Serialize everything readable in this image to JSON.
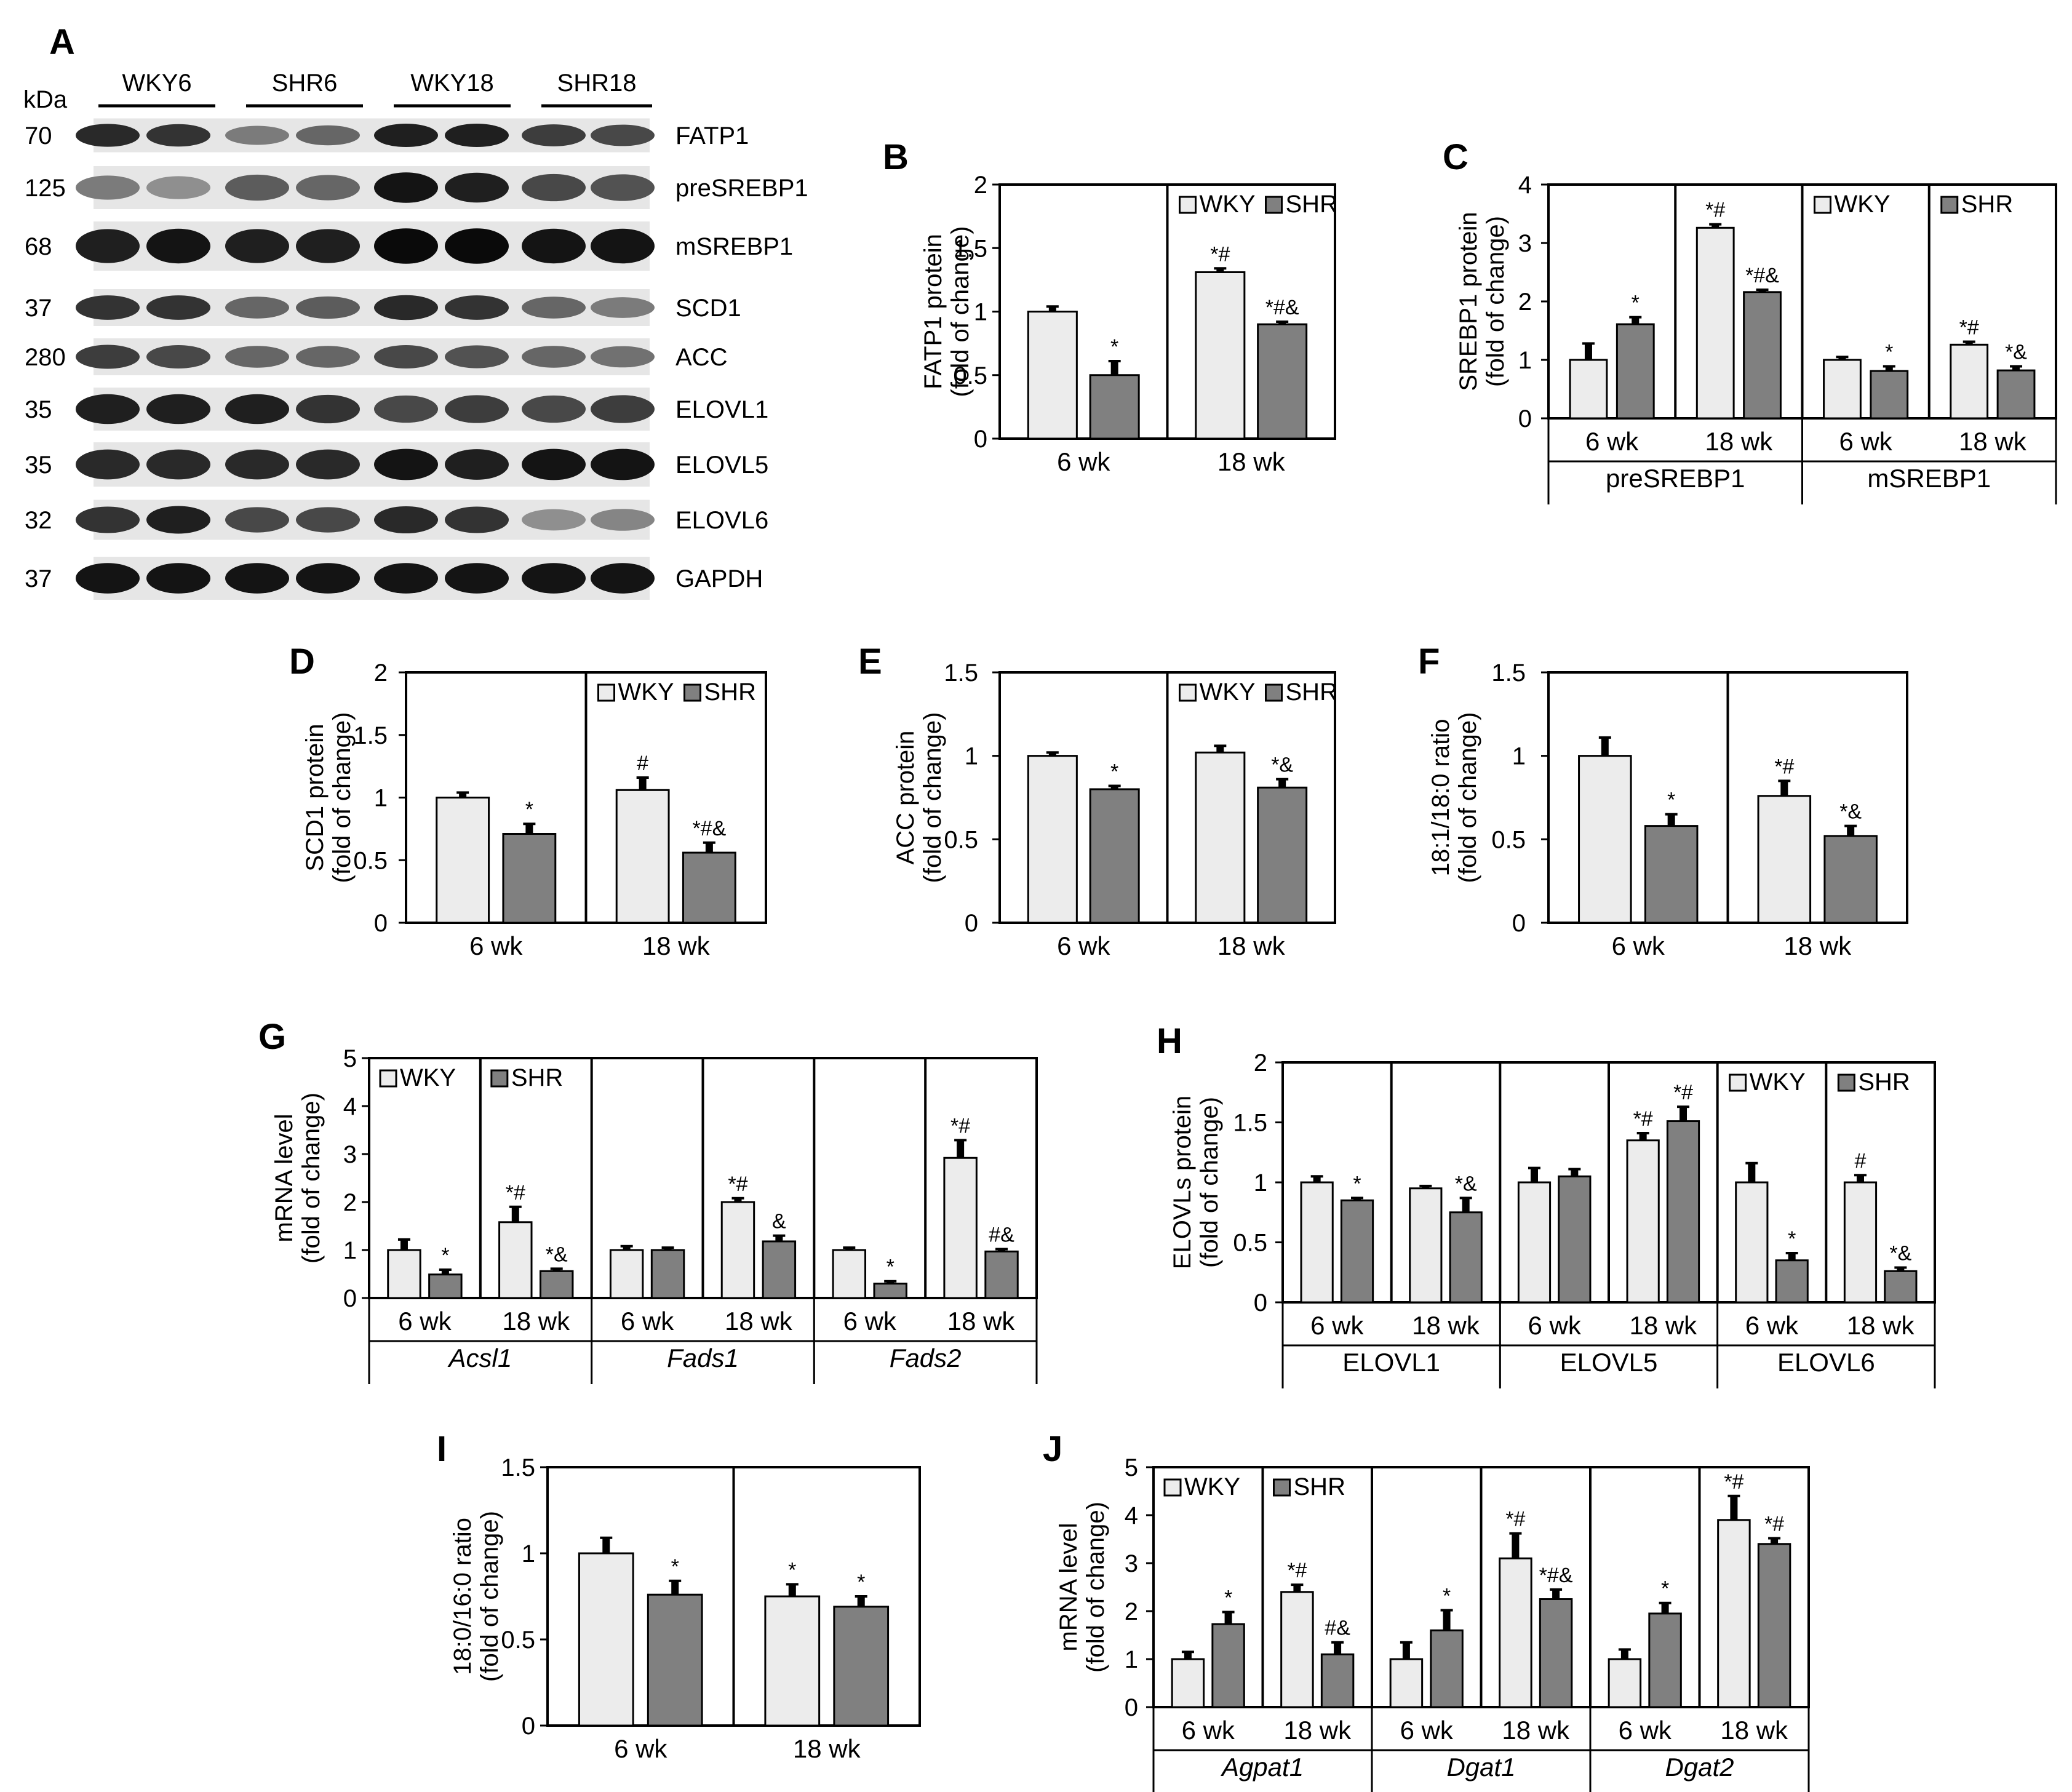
{
  "figure": {
    "blot": {
      "letter": "A",
      "kda_header": "kDa",
      "lane_groups": [
        "WKY6",
        "SHR6",
        "WKY18",
        "SHR18"
      ],
      "rows": [
        {
          "kda": "70",
          "label": "FATP1",
          "intensity": [
            0.85,
            0.8,
            0.45,
            0.55,
            0.9,
            0.9,
            0.75,
            0.7
          ]
        },
        {
          "kda": "125",
          "label": "preSREBP1",
          "intensity": [
            0.45,
            0.35,
            0.6,
            0.55,
            0.95,
            0.9,
            0.7,
            0.65
          ]
        },
        {
          "kda": "68",
          "label": "mSREBP1",
          "intensity": [
            0.9,
            0.95,
            0.9,
            0.9,
            1.0,
            1.0,
            0.95,
            0.95
          ]
        },
        {
          "kda": "37",
          "label": "SCD1",
          "intensity": [
            0.8,
            0.8,
            0.55,
            0.6,
            0.85,
            0.8,
            0.55,
            0.45
          ]
        },
        {
          "kda": "280",
          "label": "ACC",
          "intensity": [
            0.75,
            0.7,
            0.55,
            0.55,
            0.7,
            0.65,
            0.55,
            0.5
          ]
        },
        {
          "kda": "35",
          "label": "ELOVL1",
          "intensity": [
            0.9,
            0.9,
            0.9,
            0.8,
            0.7,
            0.75,
            0.7,
            0.75
          ]
        },
        {
          "kda": "35",
          "label": "ELOVL5",
          "intensity": [
            0.85,
            0.85,
            0.85,
            0.85,
            0.95,
            0.9,
            0.95,
            0.95
          ]
        },
        {
          "kda": "32",
          "label": "ELOVL6",
          "intensity": [
            0.8,
            0.9,
            0.7,
            0.7,
            0.85,
            0.8,
            0.35,
            0.4
          ]
        },
        {
          "kda": "37",
          "label": "GAPDH",
          "intensity": [
            0.95,
            0.95,
            0.95,
            0.95,
            0.95,
            0.95,
            0.95,
            0.95
          ]
        }
      ]
    }
  },
  "chart_data": [
    {
      "id": "B",
      "letter": "B",
      "type": "bar",
      "ylabel": [
        "FATP1 protein",
        "(fold of change)"
      ],
      "ylim": [
        0,
        2
      ],
      "yticks": [
        "0",
        "0.5",
        "1",
        "1.5",
        "2"
      ],
      "groups": [
        {
          "categories": [
            "6 wk",
            "18 wk"
          ],
          "label": ""
        }
      ],
      "series": [
        {
          "name": "WKY",
          "color": "#ececec"
        },
        {
          "name": "SHR",
          "color": "#808080"
        }
      ],
      "values": [
        [
          1.0,
          0.5
        ],
        [
          1.31,
          0.9
        ]
      ],
      "errors": [
        [
          0.04,
          0.11
        ],
        [
          0.03,
          0.02
        ]
      ],
      "annotations": [
        [
          "",
          "*"
        ],
        [
          "*#",
          "*#&"
        ]
      ],
      "legend": [
        "WKY",
        "SHR"
      ]
    },
    {
      "id": "C",
      "letter": "C",
      "type": "bar",
      "ylabel": [
        "SREBP1 protein",
        "(fold of change)"
      ],
      "ylim": [
        0,
        4
      ],
      "yticks": [
        "0",
        "1",
        "2",
        "3",
        "4"
      ],
      "groups": [
        {
          "categories": [
            "6 wk",
            "18 wk"
          ],
          "label": "preSREBP1"
        },
        {
          "categories": [
            "6 wk",
            "18 wk"
          ],
          "label": "mSREBP1"
        }
      ],
      "series": [
        {
          "name": "WKY",
          "color": "#ececec"
        },
        {
          "name": "SHR",
          "color": "#808080"
        }
      ],
      "values": [
        [
          1.0,
          1.61
        ],
        [
          3.26,
          2.16
        ],
        [
          1.0,
          0.81
        ],
        [
          1.26,
          0.82
        ]
      ],
      "errors": [
        [
          0.28,
          0.12
        ],
        [
          0.06,
          0.04
        ],
        [
          0.05,
          0.08
        ],
        [
          0.05,
          0.07
        ]
      ],
      "annotations": [
        [
          "",
          "*"
        ],
        [
          "*#",
          "*#&"
        ],
        [
          "",
          "*"
        ],
        [
          "*#",
          "*&"
        ]
      ],
      "legend": [
        "WKY",
        "SHR"
      ]
    },
    {
      "id": "D",
      "letter": "D",
      "type": "bar",
      "ylabel": [
        "SCD1 protein",
        "(fold of change)"
      ],
      "ylim": [
        0,
        2
      ],
      "yticks": [
        "0",
        "0.5",
        "1",
        "1.5",
        "2"
      ],
      "groups": [
        {
          "categories": [
            "6 wk",
            "18 wk"
          ],
          "label": ""
        }
      ],
      "series": [
        {
          "name": "WKY",
          "color": "#ececec"
        },
        {
          "name": "SHR",
          "color": "#808080"
        }
      ],
      "values": [
        [
          1.0,
          0.71
        ],
        [
          1.06,
          0.56
        ]
      ],
      "errors": [
        [
          0.04,
          0.08
        ],
        [
          0.1,
          0.08
        ]
      ],
      "annotations": [
        [
          "",
          "*"
        ],
        [
          "#",
          "*#&"
        ]
      ],
      "legend": [
        "WKY",
        "SHR"
      ]
    },
    {
      "id": "E",
      "letter": "E",
      "type": "bar",
      "ylabel": [
        "ACC protein",
        "(fold of change)"
      ],
      "ylim": [
        0,
        1.5
      ],
      "yticks": [
        "0",
        "0.5",
        "1",
        "1.5"
      ],
      "groups": [
        {
          "categories": [
            "6 wk",
            "18 wk"
          ],
          "label": ""
        }
      ],
      "series": [
        {
          "name": "WKY",
          "color": "#ececec"
        },
        {
          "name": "SHR",
          "color": "#808080"
        }
      ],
      "values": [
        [
          1.0,
          0.8
        ],
        [
          1.02,
          0.81
        ]
      ],
      "errors": [
        [
          0.02,
          0.02
        ],
        [
          0.04,
          0.05
        ]
      ],
      "annotations": [
        [
          "",
          "*"
        ],
        [
          "",
          "*&"
        ]
      ],
      "legend": [
        "WKY",
        "SHR"
      ]
    },
    {
      "id": "F",
      "letter": "F",
      "type": "bar",
      "ylabel": [
        "18:1/18:0 ratio",
        "(fold of change)"
      ],
      "ylim": [
        0,
        1.5
      ],
      "yticks": [
        "0",
        "0.5",
        "1",
        "1.5"
      ],
      "groups": [
        {
          "categories": [
            "6 wk",
            "18 wk"
          ],
          "label": ""
        }
      ],
      "series": [
        {
          "name": "WKY",
          "color": "#ececec"
        },
        {
          "name": "SHR",
          "color": "#808080"
        }
      ],
      "values": [
        [
          1.0,
          0.58
        ],
        [
          0.76,
          0.52
        ]
      ],
      "errors": [
        [
          0.11,
          0.07
        ],
        [
          0.09,
          0.06
        ]
      ],
      "annotations": [
        [
          "",
          "*"
        ],
        [
          "*#",
          "*&"
        ]
      ],
      "legend": []
    },
    {
      "id": "G",
      "letter": "G",
      "type": "bar",
      "ylabel": [
        "mRNA level",
        "(fold of change)"
      ],
      "ylim": [
        0,
        5
      ],
      "yticks": [
        "0",
        "1",
        "2",
        "3",
        "4",
        "5"
      ],
      "groups": [
        {
          "categories": [
            "6 wk",
            "18 wk"
          ],
          "label": "Acsl1",
          "italic": true
        },
        {
          "categories": [
            "6 wk",
            "18 wk"
          ],
          "label": "Fads1",
          "italic": true
        },
        {
          "categories": [
            "6 wk",
            "18 wk"
          ],
          "label": "Fads2",
          "italic": true
        }
      ],
      "series": [
        {
          "name": "WKY",
          "color": "#ececec"
        },
        {
          "name": "SHR",
          "color": "#808080"
        }
      ],
      "values": [
        [
          1.0,
          0.49
        ],
        [
          1.58,
          0.56
        ],
        [
          1.0,
          1.0
        ],
        [
          2.0,
          1.18
        ],
        [
          1.0,
          0.3
        ],
        [
          2.92,
          0.97
        ]
      ],
      "errors": [
        [
          0.22,
          0.1
        ],
        [
          0.32,
          0.05
        ],
        [
          0.08,
          0.05
        ],
        [
          0.08,
          0.12
        ],
        [
          0.05,
          0.05
        ],
        [
          0.37,
          0.05
        ]
      ],
      "annotations": [
        [
          "",
          "*"
        ],
        [
          "*#",
          "*&"
        ],
        [
          "",
          ""
        ],
        [
          "*#",
          "&"
        ],
        [
          "",
          "*"
        ],
        [
          "*#",
          "#&"
        ]
      ],
      "legend": [
        "WKY",
        "SHR"
      ]
    },
    {
      "id": "H",
      "letter": "H",
      "type": "bar",
      "ylabel": [
        "ELOVLs protein",
        "(fold of change)"
      ],
      "ylim": [
        0,
        2
      ],
      "yticks": [
        "0",
        "0.5",
        "1",
        "1.5",
        "2"
      ],
      "groups": [
        {
          "categories": [
            "6 wk",
            "18 wk"
          ],
          "label": "ELOVL1"
        },
        {
          "categories": [
            "6 wk",
            "18 wk"
          ],
          "label": "ELOVL5"
        },
        {
          "categories": [
            "6 wk",
            "18 wk"
          ],
          "label": "ELOVL6"
        }
      ],
      "series": [
        {
          "name": "WKY",
          "color": "#ececec"
        },
        {
          "name": "SHR",
          "color": "#808080"
        }
      ],
      "values": [
        [
          1.0,
          0.85
        ],
        [
          0.95,
          0.75
        ],
        [
          1.0,
          1.05
        ],
        [
          1.35,
          1.51
        ],
        [
          1.0,
          0.35
        ],
        [
          1.0,
          0.26
        ]
      ],
      "errors": [
        [
          0.05,
          0.02
        ],
        [
          0.02,
          0.12
        ],
        [
          0.12,
          0.06
        ],
        [
          0.06,
          0.12
        ],
        [
          0.16,
          0.06
        ],
        [
          0.06,
          0.03
        ]
      ],
      "annotations": [
        [
          "",
          "*"
        ],
        [
          "",
          "*&"
        ],
        [
          "",
          ""
        ],
        [
          "*#",
          "*#"
        ],
        [
          "",
          "*"
        ],
        [
          "#",
          "*&"
        ]
      ],
      "legend": [
        "WKY",
        "SHR"
      ]
    },
    {
      "id": "I",
      "letter": "I",
      "type": "bar",
      "ylabel": [
        "18:0/16:0 ratio",
        "(fold of change)"
      ],
      "ylim": [
        0,
        1.5
      ],
      "yticks": [
        "0",
        "0.5",
        "1",
        "1.5"
      ],
      "groups": [
        {
          "categories": [
            "6 wk",
            "18 wk"
          ],
          "label": ""
        }
      ],
      "series": [
        {
          "name": "WKY",
          "color": "#ececec"
        },
        {
          "name": "SHR",
          "color": "#808080"
        }
      ],
      "values": [
        [
          1.0,
          0.76
        ],
        [
          0.75,
          0.69
        ]
      ],
      "errors": [
        [
          0.09,
          0.08
        ],
        [
          0.07,
          0.06
        ]
      ],
      "annotations": [
        [
          "",
          "*"
        ],
        [
          "*",
          "*"
        ]
      ],
      "legend": []
    },
    {
      "id": "J",
      "letter": "J",
      "type": "bar",
      "ylabel": [
        "mRNA level",
        "(fold of change)"
      ],
      "ylim": [
        0,
        5
      ],
      "yticks": [
        "0",
        "1",
        "2",
        "3",
        "4",
        "5"
      ],
      "groups": [
        {
          "categories": [
            "6 wk",
            "18 wk"
          ],
          "label": "Agpat1",
          "italic": true
        },
        {
          "categories": [
            "6 wk",
            "18 wk"
          ],
          "label": "Dgat1",
          "italic": true
        },
        {
          "categories": [
            "6 wk",
            "18 wk"
          ],
          "label": "Dgat2",
          "italic": true
        }
      ],
      "series": [
        {
          "name": "WKY",
          "color": "#ececec"
        },
        {
          "name": "SHR",
          "color": "#808080"
        }
      ],
      "values": [
        [
          1.0,
          1.73
        ],
        [
          2.4,
          1.1
        ],
        [
          1.0,
          1.6
        ],
        [
          3.1,
          2.25
        ],
        [
          1.0,
          1.95
        ],
        [
          3.9,
          3.4
        ]
      ],
      "errors": [
        [
          0.15,
          0.25
        ],
        [
          0.15,
          0.25
        ],
        [
          0.35,
          0.42
        ],
        [
          0.52,
          0.2
        ],
        [
          0.2,
          0.22
        ],
        [
          0.5,
          0.12
        ]
      ],
      "annotations": [
        [
          "",
          "*"
        ],
        [
          "*#",
          "#&"
        ],
        [
          "",
          "*"
        ],
        [
          "*#",
          "*#&"
        ],
        [
          "",
          "*"
        ],
        [
          "*#",
          "*#"
        ]
      ],
      "legend": [
        "WKY",
        "SHR"
      ]
    }
  ]
}
